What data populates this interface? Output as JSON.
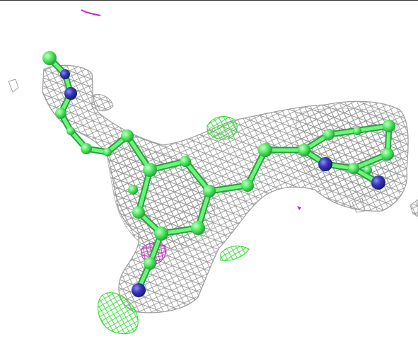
{
  "scene": {
    "background_color": "#ffffff",
    "frame_line_color": "#333333",
    "density_mesh_color": "#a8a8a8",
    "positive_difference_mesh_color": "#33dd33",
    "negative_difference_mesh_color": "#cc22cc",
    "carbon_atom_color": "#55ee66",
    "nitrogen_atom_color": "#3333aa",
    "bond_color": "#55ee66"
  }
}
